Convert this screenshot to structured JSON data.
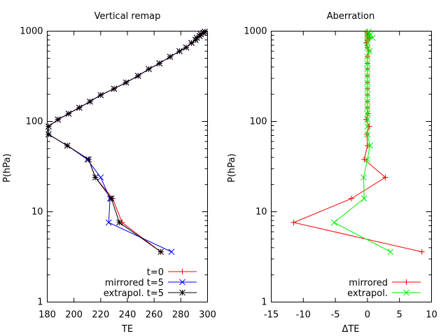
{
  "chart_data": [
    {
      "type": "line",
      "title": "Vertical remap",
      "xlabel": "TE",
      "ylabel": "P(hPa)",
      "xlim": [
        180,
        300
      ],
      "ylim": [
        1,
        1000
      ],
      "yscale": "log",
      "xticks": [
        "180",
        "200",
        "220",
        "240",
        "260",
        "280",
        "300"
      ],
      "yticks": [
        "1",
        "10",
        "100",
        "1000"
      ],
      "grid": false,
      "legend_position": "bottom-right",
      "series": [
        {
          "name": "t=0",
          "color": "#ff0000",
          "marker": "plus",
          "points": [
            [
              265,
              3.6
            ],
            [
              236,
              7.6
            ],
            [
              229,
              14
            ],
            [
              216,
              24
            ],
            [
              211,
              38
            ],
            [
              195,
              54
            ],
            [
              181,
              72
            ],
            [
              181,
              88
            ],
            [
              188,
              105
            ],
            [
              196,
              122
            ],
            [
              204,
              142
            ],
            [
              212,
              166
            ],
            [
              220,
              196
            ],
            [
              230,
              230
            ],
            [
              239,
              270
            ],
            [
              248,
              320
            ],
            [
              256,
              380
            ],
            [
              264,
              440
            ],
            [
              272,
              520
            ],
            [
              279,
              600
            ],
            [
              284,
              660
            ],
            [
              288,
              740
            ],
            [
              291,
              800
            ],
            [
              292,
              845
            ],
            [
              294,
              885
            ],
            [
              295,
              925
            ],
            [
              297,
              960
            ],
            [
              298,
              985
            ]
          ]
        },
        {
          "name": "mirrored t=5",
          "color": "#0000ff",
          "marker": "x",
          "points": [
            [
              273,
              3.6
            ],
            [
              226,
              7.6
            ],
            [
              227,
              14
            ],
            [
              220,
              24
            ],
            [
              210,
              38
            ],
            [
              195,
              54
            ],
            [
              181,
              72
            ],
            [
              181,
              88
            ],
            [
              188,
              105
            ],
            [
              196,
              122
            ],
            [
              204,
              142
            ],
            [
              212,
              166
            ],
            [
              220,
              196
            ],
            [
              230,
              230
            ],
            [
              239,
              270
            ],
            [
              248,
              320
            ],
            [
              256,
              380
            ],
            [
              264,
              440
            ],
            [
              272,
              520
            ],
            [
              279,
              600
            ],
            [
              284,
              660
            ],
            [
              288,
              740
            ],
            [
              291,
              800
            ],
            [
              292,
              845
            ],
            [
              294,
              885
            ],
            [
              295,
              925
            ],
            [
              297,
              960
            ],
            [
              298,
              985
            ]
          ]
        },
        {
          "name": "extrapol. t=5",
          "color": "#000000",
          "marker": "star",
          "points": [
            [
              265,
              3.6
            ],
            [
              234,
              7.6
            ],
            [
              228,
              14
            ],
            [
              216,
              24
            ],
            [
              211,
              38
            ],
            [
              195,
              54
            ],
            [
              181,
              72
            ],
            [
              181,
              88
            ],
            [
              188,
              105
            ],
            [
              196,
              122
            ],
            [
              204,
              142
            ],
            [
              212,
              166
            ],
            [
              220,
              196
            ],
            [
              230,
              230
            ],
            [
              239,
              270
            ],
            [
              248,
              320
            ],
            [
              256,
              380
            ],
            [
              264,
              440
            ],
            [
              272,
              520
            ],
            [
              279,
              600
            ],
            [
              284,
              660
            ],
            [
              288,
              740
            ],
            [
              291,
              800
            ],
            [
              292,
              845
            ],
            [
              294,
              885
            ],
            [
              295,
              925
            ],
            [
              297,
              960
            ],
            [
              298,
              985
            ]
          ]
        }
      ]
    },
    {
      "type": "line",
      "title": "Aberration",
      "xlabel": "ΔTE",
      "ylabel": "P(hPa)",
      "xlim": [
        -15,
        10
      ],
      "ylim": [
        1,
        1000
      ],
      "yscale": "log",
      "xticks": [
        "-15",
        "-10",
        "-5",
        "0",
        "5",
        "10"
      ],
      "yticks": [
        "1",
        "10",
        "100",
        "1000"
      ],
      "grid": false,
      "legend_position": "bottom-right",
      "series": [
        {
          "name": "mirrored",
          "color": "#ff0000",
          "marker": "plus",
          "points": [
            [
              8.5,
              3.6
            ],
            [
              -11.5,
              7.6
            ],
            [
              -2.5,
              14
            ],
            [
              2.8,
              24
            ],
            [
              -0.5,
              38
            ],
            [
              0,
              54
            ],
            [
              -0.1,
              72
            ],
            [
              0.3,
              88
            ],
            [
              -0.2,
              105
            ],
            [
              0.1,
              122
            ],
            [
              0,
              142
            ],
            [
              0,
              166
            ],
            [
              0,
              196
            ],
            [
              0,
              230
            ],
            [
              0,
              270
            ],
            [
              0,
              320
            ],
            [
              0,
              380
            ],
            [
              0,
              440
            ],
            [
              0,
              520
            ],
            [
              0.2,
              600
            ],
            [
              0,
              660
            ],
            [
              -0.2,
              740
            ],
            [
              0,
              800
            ],
            [
              0.3,
              845
            ],
            [
              0,
              885
            ],
            [
              0.2,
              925
            ],
            [
              0,
              960
            ],
            [
              0,
              985
            ]
          ]
        },
        {
          "name": "extrapol.",
          "color": "#00ee00",
          "marker": "x",
          "points": [
            [
              3.6,
              3.6
            ],
            [
              -5.2,
              7.6
            ],
            [
              -0.5,
              14
            ],
            [
              -0.6,
              24
            ],
            [
              0,
              38
            ],
            [
              0.4,
              54
            ],
            [
              0,
              72
            ],
            [
              0,
              88
            ],
            [
              0,
              105
            ],
            [
              0,
              122
            ],
            [
              0,
              142
            ],
            [
              0,
              166
            ],
            [
              0,
              196
            ],
            [
              0,
              230
            ],
            [
              0,
              270
            ],
            [
              0,
              320
            ],
            [
              0,
              380
            ],
            [
              0,
              440
            ],
            [
              0,
              520
            ],
            [
              0.3,
              600
            ],
            [
              0,
              660
            ],
            [
              0,
              740
            ],
            [
              0,
              800
            ],
            [
              0.8,
              845
            ],
            [
              0,
              885
            ],
            [
              0.5,
              925
            ],
            [
              0,
              960
            ],
            [
              0.2,
              985
            ]
          ]
        }
      ]
    }
  ]
}
